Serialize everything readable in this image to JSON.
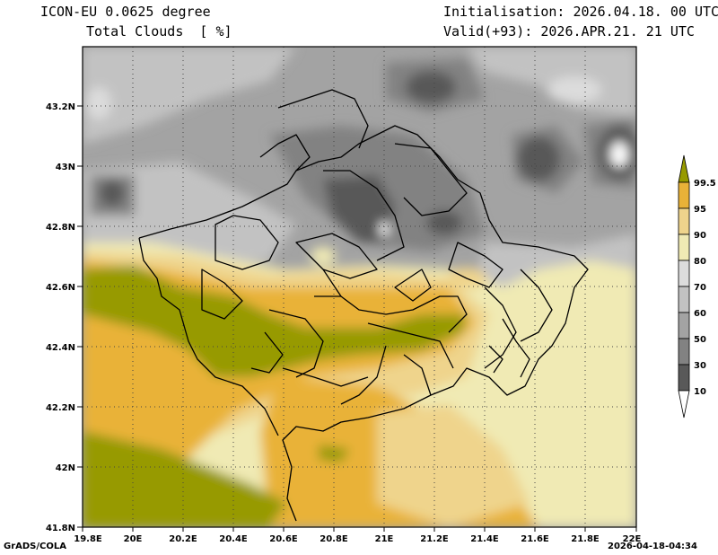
{
  "header": {
    "model": "ICON-EU 0.0625 degree",
    "variable": "Total Clouds  [ %]",
    "init": "Initialisation: 2026.04.18. 00 UTC",
    "valid": "Valid(+93): 2026.APR.21. 21 UTC"
  },
  "footer": {
    "credit": "GrADS/COLA",
    "timestamp": "2026-04-18-04:34"
  },
  "map": {
    "lat_labels": [
      "43.2N",
      "43N",
      "42.8N",
      "42.6N",
      "42.4N",
      "42.2N",
      "42N",
      "41.8N"
    ],
    "lon_labels": [
      "19.8E",
      "20E",
      "20.2E",
      "20.4E",
      "20.6E",
      "20.8E",
      "21E",
      "21.2E",
      "21.4E",
      "21.6E",
      "21.8E",
      "22E"
    ]
  },
  "colorbar": {
    "levels": [
      "10",
      "30",
      "50",
      "60",
      "70",
      "80",
      "90",
      "95",
      "99.5"
    ],
    "colors": {
      "lt10": "#ffffff",
      "c10_30": "#595959",
      "c30_50": "#828282",
      "c50_60": "#a3a3a3",
      "c60_70": "#c2c2c2",
      "c70_80": "#dcdcdc",
      "c80_90": "#f0eab4",
      "c90_95": "#efd48c",
      "c95_99": "#e9b238",
      "c99": "#979a00"
    }
  }
}
